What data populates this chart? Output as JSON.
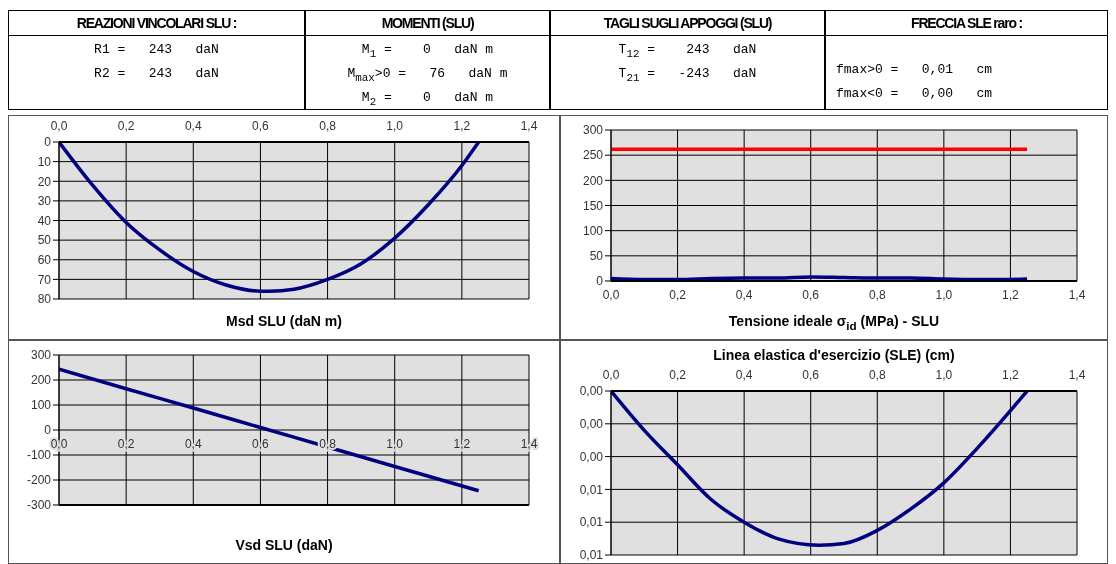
{
  "chart_data": [
    {
      "type": "other",
      "title": "REAZIONI VINCOLARI SLU :",
      "annotations": [
        "R1 =   243   daN",
        "R2 =   243   daN"
      ]
    },
    {
      "type": "other",
      "title": "MOMENTI (SLU)",
      "annotations": [
        "M$_{1}$ =    0   daN m",
        "M$_{max}$>0 =   76   daN m",
        "M$_{2}$ =    0   daN m"
      ]
    },
    {
      "type": "other",
      "title": "TAGLI SUGLI APPOGGI (SLU)",
      "annotations": [
        "T$_{12}$ =    243   daN",
        "T$_{21}$ =   -243   daN"
      ]
    },
    {
      "type": "other",
      "title": "FRECCIA SLE raro :",
      "annotations": [
        "fmax>0 =   0,01   cm",
        "fmax<0 =   0,00   cm"
      ]
    },
    {
      "type": "line",
      "xlabel": "Msd SLU (daN m)",
      "x": [
        0,
        0.1,
        0.2,
        0.3,
        0.4,
        0.5,
        0.6,
        0.625,
        0.7,
        0.8,
        0.9,
        1.0,
        1.1,
        1.2,
        1.25
      ],
      "series": [
        {
          "color": "#000080",
          "values": [
            0,
            22,
            41,
            55,
            66,
            73,
            76,
            76,
            75,
            70,
            62,
            49,
            32,
            12,
            0
          ]
        }
      ],
      "xlim": [
        0,
        1.4
      ],
      "xticks": [
        {
          "value": 0,
          "label": "0,0"
        },
        {
          "value": 0.2,
          "label": "0,2"
        },
        {
          "value": 0.4,
          "label": "0,4"
        },
        {
          "value": 0.6,
          "label": "0,6"
        },
        {
          "value": 0.8,
          "label": "0,8"
        },
        {
          "value": 1,
          "label": "1,0"
        },
        {
          "value": 1.2,
          "label": "1,2"
        },
        {
          "value": 1.4,
          "label": "1,4"
        }
      ],
      "ylim": [
        80,
        0
      ],
      "yticks": [
        0,
        10,
        20,
        30,
        40,
        50,
        60,
        70,
        80
      ],
      "grid": true
    },
    {
      "type": "line",
      "xlabel": "Tensione ideale σ$_{id}$ (MPa) - SLU",
      "series": [
        {
          "color": "#ff0000",
          "x": [
            0,
            1.25
          ],
          "values": [
            262,
            262
          ]
        },
        {
          "color": "#000080",
          "x": [
            0,
            0.1,
            0.2,
            0.3,
            0.4,
            0.5,
            0.6,
            0.7,
            0.8,
            0.9,
            1.0,
            1.1,
            1.2,
            1.25
          ],
          "values": [
            5,
            3,
            3,
            5,
            6,
            6,
            8,
            7,
            6,
            6,
            4,
            3,
            3,
            4
          ]
        }
      ],
      "xlim": [
        0,
        1.4
      ],
      "xticks": [
        {
          "value": 0,
          "label": "0,0"
        },
        {
          "value": 0.2,
          "label": "0,2"
        },
        {
          "value": 0.4,
          "label": "0,4"
        },
        {
          "value": 0.6,
          "label": "0,6"
        },
        {
          "value": 0.8,
          "label": "0,8"
        },
        {
          "value": 1,
          "label": "1,0"
        },
        {
          "value": 1.2,
          "label": "1,2"
        },
        {
          "value": 1.4,
          "label": "1,4"
        }
      ],
      "ylim": [
        0,
        300
      ],
      "yticks": [
        0,
        50,
        100,
        150,
        200,
        250,
        300
      ],
      "grid": true
    },
    {
      "type": "line",
      "xlabel": "Vsd SLU (daN)",
      "x": [
        0,
        0.2,
        0.4,
        0.6,
        0.8,
        1.0,
        1.25
      ],
      "series": [
        {
          "color": "#000080",
          "values": [
            243,
            165,
            88,
            10,
            -68,
            -146,
            -243
          ]
        }
      ],
      "xlim": [
        0,
        1.4
      ],
      "xticks": [
        {
          "value": 0,
          "label": "0,0"
        },
        {
          "value": 0.2,
          "label": "0,2"
        },
        {
          "value": 0.4,
          "label": "0,4"
        },
        {
          "value": 0.6,
          "label": "0,6"
        },
        {
          "value": 0.8,
          "label": "0,8"
        },
        {
          "value": 1,
          "label": "1,0"
        },
        {
          "value": 1.2,
          "label": "1,2"
        },
        {
          "value": 1.4,
          "label": "1,4"
        }
      ],
      "ylim": [
        -300,
        300
      ],
      "yticks": [
        -300,
        -200,
        -100,
        0,
        100,
        200,
        300
      ],
      "grid": true
    },
    {
      "type": "line",
      "title": "Linea elastica d'esercizio (SLE) (cm)",
      "x": [
        0,
        0.1,
        0.2,
        0.3,
        0.4,
        0.5,
        0.625,
        0.7,
        0.8,
        0.9,
        1.0,
        1.1,
        1.2,
        1.25
      ],
      "series": [
        {
          "color": "#000080",
          "values": [
            0,
            0.0024,
            0.0045,
            0.0066,
            0.008,
            0.009,
            0.0094,
            0.0093,
            0.0085,
            0.0072,
            0.0056,
            0.0035,
            0.0012,
            0
          ]
        }
      ],
      "xlim": [
        0,
        1.4
      ],
      "xticks": [
        {
          "value": 0,
          "label": "0,0"
        },
        {
          "value": 0.2,
          "label": "0,2"
        },
        {
          "value": 0.4,
          "label": "0,4"
        },
        {
          "value": 0.6,
          "label": "0,6"
        },
        {
          "value": 0.8,
          "label": "0,8"
        },
        {
          "value": 1,
          "label": "1,0"
        },
        {
          "value": 1.2,
          "label": "1,2"
        },
        {
          "value": 1.4,
          "label": "1,4"
        }
      ],
      "ylim": [
        0.01,
        0
      ],
      "yticks": [
        {
          "value": 0,
          "label": "0,00"
        },
        {
          "value": 0.002,
          "label": "0,00"
        },
        {
          "value": 0.004,
          "label": "0,00"
        },
        {
          "value": 0.006,
          "label": "0,01"
        },
        {
          "value": 0.008,
          "label": "0,01"
        },
        {
          "value": 0.01,
          "label": "0,01"
        }
      ],
      "grid": true
    }
  ]
}
